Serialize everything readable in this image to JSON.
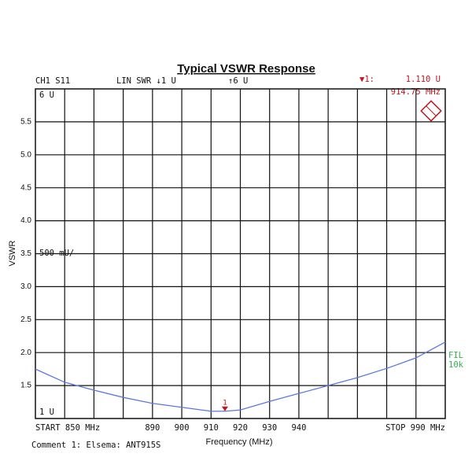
{
  "chart_data": {
    "type": "line",
    "title": "Typical VSWR Response",
    "xlabel": "Frequency (MHz)",
    "ylabel": "VSWR",
    "x": [
      850,
      860,
      870,
      880,
      890,
      900,
      910,
      914.75,
      920,
      930,
      940,
      950,
      960,
      970,
      980,
      990
    ],
    "values": [
      1.75,
      1.55,
      1.43,
      1.32,
      1.23,
      1.17,
      1.11,
      1.11,
      1.13,
      1.26,
      1.38,
      1.5,
      1.62,
      1.76,
      1.92,
      2.16
    ],
    "color": "#5a78e0",
    "xlim": [
      850,
      990
    ],
    "ylim": [
      1,
      6
    ],
    "xticks": [
      890,
      900,
      910,
      920,
      930,
      940
    ],
    "xgrid_step": 10,
    "yticks": [
      1.5,
      {
        "value": 2,
        "label": "2.0"
      },
      2.5,
      {
        "value": 3,
        "label": "3.0"
      },
      3.5,
      {
        "value": 4,
        "label": "4.0"
      },
      4.5,
      {
        "value": 5,
        "label": "5.0"
      },
      5.5
    ],
    "grid": true,
    "marker": {
      "x": 914.75,
      "value": 1.11,
      "label": "1",
      "symbol": "▼1:",
      "readout_value": "1.110 U",
      "readout_freq": "914.75 MHz",
      "color": "#c0161c"
    },
    "annotations": {
      "channel": "CH1 S11",
      "format": "LIN SWR ↓1 U",
      "ref_top": "↑6 U",
      "top_label": "6 U",
      "bottom_label": "1 U",
      "scale": "500 mU/",
      "start": "START 850 MHz",
      "stop": "STOP 990 MHz",
      "fil": "FIL",
      "fil_bw": "10k",
      "comment": "Comment 1: Elsema: ANT915S"
    }
  }
}
